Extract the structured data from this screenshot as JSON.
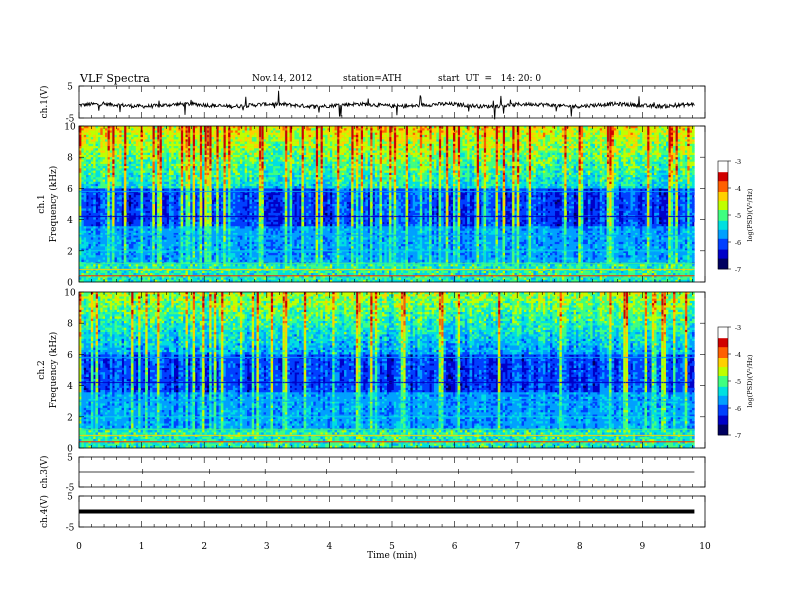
{
  "header": {
    "title": "VLF  Spectra",
    "date": "Nov.14, 2012",
    "station": "station=ATH",
    "start": "start  UT  =   14: 20: 0"
  },
  "colors": {
    "colormap": [
      "#000060",
      "#0000c8",
      "#0040ff",
      "#00a0ff",
      "#00e0e0",
      "#40ff80",
      "#c0ff00",
      "#ffd000",
      "#ff6000",
      "#d00000",
      "#ffffff"
    ],
    "trace": "#000000"
  },
  "chart_data": [
    {
      "type": "line",
      "panel": "ch1-waveform",
      "ylabel": "ch.1(V)",
      "yticks": [
        "5",
        "-5"
      ],
      "ylim": [
        -5,
        5
      ],
      "xlim": [
        0,
        10
      ],
      "description_values": {
        "baseline": -1,
        "noise_amplitude": 0.6,
        "spike_amplitude": 4
      }
    },
    {
      "type": "heatmap",
      "panel": "ch1-spectrogram",
      "ylabel_top": "ch.1",
      "ylabel": "Frequency  (kHz)",
      "yticks": [
        "0",
        "2",
        "4",
        "6",
        "8",
        "10"
      ],
      "ylim": [
        0,
        10
      ],
      "xlim": [
        0,
        10
      ],
      "colorbar": {
        "label": "log(PSD)(V²/Hz)",
        "ticks": [
          "-3",
          "-4",
          "-5",
          "-6",
          "-7"
        ],
        "range": [
          -7,
          -3
        ]
      }
    },
    {
      "type": "heatmap",
      "panel": "ch2-spectrogram",
      "ylabel_top": "ch.2",
      "ylabel": "Frequency  (kHz)",
      "yticks": [
        "0",
        "2",
        "4",
        "6",
        "8",
        "10"
      ],
      "ylim": [
        0,
        10
      ],
      "xlim": [
        0,
        10
      ],
      "colorbar": {
        "label": "log(PSD)(V²/Hz)",
        "ticks": [
          "-3",
          "-4",
          "-5",
          "-6",
          "-7"
        ],
        "range": [
          -7,
          -3
        ]
      }
    },
    {
      "type": "line",
      "panel": "ch3-waveform",
      "ylabel": "ch.3(V)",
      "yticks": [
        "5",
        "-5"
      ],
      "ylim": [
        -5,
        5
      ],
      "xlim": [
        0,
        10
      ],
      "description_values": {
        "baseline": 0
      }
    },
    {
      "type": "line",
      "panel": "ch4-waveform",
      "ylabel": "ch.4(V)",
      "yticks": [
        "5",
        "-5"
      ],
      "ylim": [
        -5,
        5
      ],
      "xlim": [
        0,
        10
      ],
      "description_values": {
        "baseline": 0
      }
    }
  ],
  "xaxis": {
    "label": "Time  (min)",
    "ticks": [
      "0",
      "1",
      "2",
      "3",
      "4",
      "5",
      "6",
      "7",
      "8",
      "9",
      "10"
    ],
    "range": [
      0,
      10
    ],
    "data_end": 9.83
  }
}
